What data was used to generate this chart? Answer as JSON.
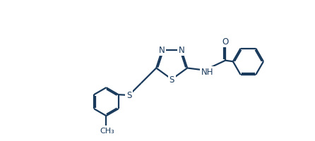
{
  "bg_color": "#ffffff",
  "line_color": "#1a3a5c",
  "line_width": 1.6,
  "font_size": 8.5,
  "figsize": [
    4.46,
    2.01
  ],
  "dpi": 100,
  "xlim": [
    0,
    446
  ],
  "ylim": [
    0,
    201
  ]
}
